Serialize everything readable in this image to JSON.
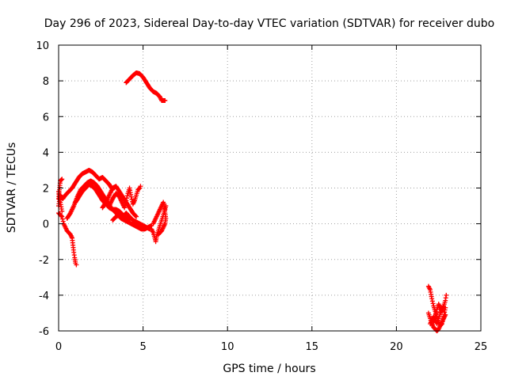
{
  "chart_data": {
    "type": "scatter",
    "title": "Day 296 of 2023, Sidereal Day-to-day VTEC variation (SDTVAR) for receiver dubo",
    "xlabel": "GPS time / hours",
    "ylabel": "SDTVAR / TECUs",
    "xlim": [
      0,
      25
    ],
    "ylim": [
      -6,
      10
    ],
    "xticks": [
      0,
      5,
      10,
      15,
      20,
      25
    ],
    "yticks": [
      -6,
      -4,
      -2,
      0,
      2,
      4,
      6,
      8,
      10
    ],
    "grid": true,
    "marker": "plus",
    "color": "#ff0000",
    "segments": [
      [
        [
          0.0,
          1.0
        ],
        [
          0.1,
          1.6
        ],
        [
          0.25,
          1.4
        ],
        [
          0.4,
          1.6
        ],
        [
          0.6,
          1.8
        ],
        [
          0.8,
          2.0
        ],
        [
          1.0,
          2.3
        ],
        [
          1.2,
          2.6
        ],
        [
          1.4,
          2.8
        ],
        [
          1.6,
          2.9
        ],
        [
          1.8,
          3.0
        ],
        [
          2.0,
          2.9
        ],
        [
          2.2,
          2.7
        ],
        [
          2.4,
          2.5
        ],
        [
          2.6,
          2.6
        ],
        [
          2.8,
          2.4
        ],
        [
          3.0,
          2.2
        ],
        [
          3.2,
          1.9
        ]
      ],
      [
        [
          0.0,
          1.4
        ],
        [
          0.1,
          2.4
        ],
        [
          0.2,
          2.5
        ]
      ],
      [
        [
          0.0,
          1.8
        ],
        [
          0.1,
          1.2
        ],
        [
          0.2,
          0.7
        ]
      ],
      [
        [
          0.0,
          0.6
        ],
        [
          0.2,
          0.4
        ],
        [
          0.3,
          0.0
        ],
        [
          0.4,
          -0.2
        ],
        [
          0.5,
          -0.4
        ],
        [
          0.6,
          -0.5
        ],
        [
          0.7,
          -0.6
        ],
        [
          0.8,
          -0.8
        ],
        [
          0.85,
          -1.2
        ],
        [
          0.9,
          -1.6
        ],
        [
          0.95,
          -1.9
        ],
        [
          1.0,
          -2.2
        ],
        [
          1.05,
          -2.3
        ]
      ],
      [
        [
          0.5,
          0.3
        ],
        [
          0.7,
          0.6
        ],
        [
          0.9,
          1.0
        ],
        [
          1.1,
          1.5
        ],
        [
          1.3,
          1.9
        ],
        [
          1.5,
          2.1
        ],
        [
          1.7,
          2.3
        ],
        [
          1.9,
          2.4
        ],
        [
          2.1,
          2.3
        ],
        [
          2.3,
          2.1
        ],
        [
          2.5,
          1.8
        ],
        [
          2.7,
          1.5
        ],
        [
          2.9,
          1.2
        ],
        [
          3.1,
          0.9
        ],
        [
          3.3,
          0.7
        ],
        [
          3.5,
          0.5
        ],
        [
          3.7,
          0.3
        ],
        [
          3.9,
          0.2
        ],
        [
          4.1,
          0.1
        ],
        [
          4.3,
          0.0
        ],
        [
          4.5,
          -0.1
        ],
        [
          4.7,
          -0.2
        ],
        [
          4.9,
          -0.3
        ],
        [
          5.1,
          -0.3
        ],
        [
          5.3,
          -0.2
        ],
        [
          5.5,
          -0.1
        ]
      ],
      [
        [
          1.0,
          1.2
        ],
        [
          1.2,
          1.5
        ],
        [
          1.4,
          1.8
        ],
        [
          1.6,
          2.0
        ],
        [
          1.8,
          2.2
        ],
        [
          2.0,
          2.1
        ],
        [
          2.2,
          1.9
        ],
        [
          2.4,
          1.6
        ],
        [
          2.6,
          1.3
        ],
        [
          2.8,
          1.1
        ],
        [
          3.0,
          0.9
        ],
        [
          3.2,
          0.8
        ],
        [
          3.4,
          0.8
        ],
        [
          3.6,
          0.7
        ],
        [
          3.8,
          0.5
        ],
        [
          4.0,
          0.3
        ],
        [
          4.2,
          0.2
        ]
      ],
      [
        [
          2.6,
          0.9
        ],
        [
          2.8,
          1.2
        ],
        [
          3.0,
          1.6
        ],
        [
          3.2,
          2.0
        ],
        [
          3.4,
          2.1
        ],
        [
          3.6,
          1.8
        ],
        [
          3.8,
          1.5
        ],
        [
          4.0,
          1.2
        ],
        [
          4.2,
          0.9
        ],
        [
          4.4,
          0.6
        ],
        [
          4.6,
          0.4
        ]
      ],
      [
        [
          3.0,
          1.0
        ],
        [
          3.2,
          1.4
        ],
        [
          3.4,
          1.7
        ],
        [
          3.6,
          1.5
        ],
        [
          3.8,
          1.1
        ],
        [
          3.9,
          0.9
        ],
        [
          4.0,
          1.3
        ],
        [
          4.1,
          1.7
        ],
        [
          4.2,
          2.0
        ],
        [
          4.3,
          1.5
        ],
        [
          4.4,
          1.1
        ],
        [
          4.5,
          1.3
        ],
        [
          4.6,
          1.6
        ],
        [
          4.7,
          1.9
        ],
        [
          4.8,
          2.0
        ],
        [
          4.85,
          2.1
        ]
      ],
      [
        [
          3.2,
          0.2
        ],
        [
          3.4,
          0.4
        ],
        [
          3.6,
          0.5
        ],
        [
          3.8,
          0.4
        ],
        [
          4.0,
          0.6
        ],
        [
          4.2,
          0.4
        ],
        [
          4.4,
          0.2
        ],
        [
          4.6,
          0.1
        ],
        [
          4.8,
          0.0
        ],
        [
          5.0,
          -0.1
        ],
        [
          5.2,
          -0.2
        ],
        [
          5.4,
          -0.3
        ]
      ],
      [
        [
          5.5,
          -0.3
        ],
        [
          5.6,
          -0.5
        ],
        [
          5.7,
          -0.8
        ],
        [
          5.75,
          -1.0
        ],
        [
          5.8,
          -0.7
        ],
        [
          5.9,
          -0.4
        ],
        [
          6.0,
          -0.1
        ],
        [
          6.1,
          0.2
        ],
        [
          6.2,
          0.5
        ],
        [
          6.3,
          0.8
        ],
        [
          6.35,
          1.0
        ]
      ],
      [
        [
          5.6,
          0.0
        ],
        [
          5.7,
          0.2
        ],
        [
          5.8,
          0.4
        ],
        [
          5.9,
          0.6
        ],
        [
          6.0,
          0.8
        ],
        [
          6.1,
          1.0
        ],
        [
          6.2,
          1.2
        ],
        [
          6.25,
          1.1
        ],
        [
          6.3,
          0.6
        ],
        [
          6.35,
          0.3
        ],
        [
          6.3,
          0.0
        ],
        [
          6.2,
          -0.2
        ],
        [
          6.1,
          -0.4
        ],
        [
          6.0,
          -0.5
        ],
        [
          5.9,
          -0.6
        ]
      ],
      [
        [
          4.0,
          7.9
        ],
        [
          4.2,
          8.1
        ],
        [
          4.4,
          8.3
        ],
        [
          4.6,
          8.45
        ],
        [
          4.8,
          8.4
        ],
        [
          5.0,
          8.2
        ],
        [
          5.2,
          7.9
        ],
        [
          5.4,
          7.6
        ],
        [
          5.6,
          7.4
        ],
        [
          5.8,
          7.3
        ],
        [
          6.0,
          7.1
        ],
        [
          6.1,
          6.9
        ],
        [
          6.2,
          6.9
        ],
        [
          6.3,
          6.9
        ]
      ],
      [
        [
          21.9,
          -3.5
        ],
        [
          22.0,
          -3.7
        ],
        [
          22.1,
          -4.2
        ],
        [
          22.2,
          -4.6
        ],
        [
          22.3,
          -4.9
        ],
        [
          22.4,
          -5.2
        ],
        [
          22.5,
          -5.5
        ],
        [
          22.6,
          -5.7
        ],
        [
          22.7,
          -5.6
        ],
        [
          22.8,
          -5.2
        ],
        [
          22.9,
          -4.7
        ]
      ],
      [
        [
          21.9,
          -5.0
        ],
        [
          22.0,
          -5.3
        ],
        [
          22.1,
          -5.6
        ],
        [
          22.2,
          -5.8
        ],
        [
          22.3,
          -5.9
        ],
        [
          22.4,
          -6.0
        ],
        [
          22.5,
          -5.9
        ],
        [
          22.6,
          -5.7
        ],
        [
          22.7,
          -5.5
        ],
        [
          22.8,
          -5.3
        ],
        [
          22.9,
          -5.1
        ]
      ],
      [
        [
          22.2,
          -5.5
        ],
        [
          22.3,
          -5.2
        ],
        [
          22.4,
          -4.8
        ],
        [
          22.5,
          -4.5
        ],
        [
          22.6,
          -4.7
        ],
        [
          22.7,
          -4.9
        ],
        [
          22.8,
          -4.6
        ],
        [
          22.9,
          -4.3
        ],
        [
          22.95,
          -4.0
        ]
      ],
      [
        [
          22.0,
          -5.6
        ],
        [
          22.1,
          -5.4
        ],
        [
          22.2,
          -5.2
        ],
        [
          22.3,
          -5.4
        ],
        [
          22.4,
          -5.6
        ],
        [
          22.5,
          -5.3
        ],
        [
          22.6,
          -5.0
        ],
        [
          22.7,
          -4.8
        ],
        [
          22.8,
          -4.6
        ]
      ]
    ]
  }
}
